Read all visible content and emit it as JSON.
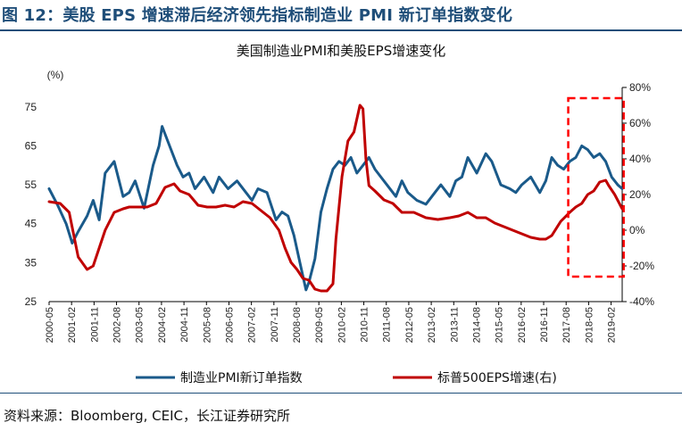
{
  "figure": {
    "title": "图 12：美股 EPS 增速滞后经济领先指标制造业 PMI 新订单指数变化",
    "source": "资料来源：Bloomberg, CEIC，长江证券研究所"
  },
  "chart_data": {
    "type": "line",
    "title": "美国制造业PMI和美股EPS增速变化",
    "y_unit_label": "(%)",
    "ylim_left": [
      25,
      80
    ],
    "yticks_left": [
      25,
      35,
      45,
      55,
      65,
      75
    ],
    "ylim_right": [
      -40,
      80
    ],
    "yticks_right": [
      "-40%",
      "-20%",
      "0%",
      "20%",
      "40%",
      "60%",
      "80%"
    ],
    "ytick_values_right": [
      -40,
      -20,
      0,
      20,
      40,
      60,
      80
    ],
    "xlim": [
      2000.33,
      2019.45
    ],
    "x_tick_labels": [
      "2000-05",
      "2001-02",
      "2001-11",
      "2002-08",
      "2003-05",
      "2004-02",
      "2004-11",
      "2005-08",
      "2006-05",
      "2007-02",
      "2007-11",
      "2008-08",
      "2009-05",
      "2010-02",
      "2010-11",
      "2011-08",
      "2012-05",
      "2013-02",
      "2013-11",
      "2014-08",
      "2015-05",
      "2016-02",
      "2016-11",
      "2017-08",
      "2018-05",
      "2019-02"
    ],
    "x_tick_positions": [
      2000.33,
      2001.08,
      2001.83,
      2002.58,
      2003.33,
      2004.08,
      2004.83,
      2005.58,
      2006.33,
      2007.08,
      2007.83,
      2008.58,
      2009.33,
      2010.08,
      2010.83,
      2011.58,
      2012.33,
      2013.08,
      2013.83,
      2014.58,
      2015.33,
      2016.08,
      2016.83,
      2017.58,
      2018.33,
      2019.08
    ],
    "grid": false,
    "legend_position": "bottom",
    "series": [
      {
        "name": "制造业PMI新订单指数",
        "axis": "left",
        "color": "#1a5a8a",
        "x": [
          2000.33,
          2000.6,
          2000.9,
          2001.1,
          2001.3,
          2001.6,
          2001.8,
          2002.0,
          2002.2,
          2002.5,
          2002.8,
          2003.0,
          2003.2,
          2003.5,
          2003.8,
          2004.0,
          2004.1,
          2004.3,
          2004.6,
          2004.8,
          2005.0,
          2005.2,
          2005.5,
          2005.8,
          2006.0,
          2006.3,
          2006.6,
          2006.9,
          2007.1,
          2007.3,
          2007.6,
          2007.9,
          2008.1,
          2008.3,
          2008.5,
          2008.7,
          2008.9,
          2009.0,
          2009.2,
          2009.4,
          2009.6,
          2009.8,
          2010.0,
          2010.2,
          2010.4,
          2010.6,
          2010.8,
          2011.0,
          2011.2,
          2011.4,
          2011.6,
          2011.9,
          2012.1,
          2012.3,
          2012.6,
          2012.9,
          2013.1,
          2013.4,
          2013.7,
          2013.9,
          2014.1,
          2014.3,
          2014.6,
          2014.9,
          2015.1,
          2015.4,
          2015.7,
          2015.9,
          2016.1,
          2016.4,
          2016.7,
          2016.9,
          2017.1,
          2017.3,
          2017.5,
          2017.7,
          2017.9,
          2018.1,
          2018.3,
          2018.5,
          2018.7,
          2018.9,
          2019.1,
          2019.3,
          2019.45
        ],
        "y": [
          54,
          50,
          45,
          40,
          43,
          47,
          51,
          46,
          58,
          61,
          52,
          53,
          56,
          49,
          60,
          65,
          70,
          66,
          60,
          57,
          58,
          54,
          57,
          53,
          57,
          54,
          56,
          53,
          51,
          54,
          53,
          46,
          48,
          47,
          42,
          35,
          28,
          30,
          36,
          48,
          54,
          59,
          61,
          60,
          62,
          58,
          60,
          62,
          59,
          57,
          55,
          52,
          56,
          53,
          51,
          50,
          52,
          55,
          52,
          56,
          57,
          62,
          58,
          63,
          61,
          55,
          54,
          53,
          55,
          57,
          53,
          56,
          62,
          60,
          59,
          61,
          62,
          65,
          64,
          62,
          63,
          61,
          57,
          55,
          54
        ],
        "line_width": 3
      },
      {
        "name": "标普500EPS增速(右)",
        "axis": "right",
        "color": "#c00000",
        "x": [
          2000.33,
          2000.7,
          2001.0,
          2001.3,
          2001.6,
          2001.8,
          2002.0,
          2002.2,
          2002.5,
          2002.8,
          2003.0,
          2003.3,
          2003.6,
          2003.9,
          2004.2,
          2004.5,
          2004.7,
          2005.0,
          2005.3,
          2005.6,
          2005.9,
          2006.2,
          2006.5,
          2006.8,
          2007.1,
          2007.4,
          2007.7,
          2008.0,
          2008.2,
          2008.4,
          2008.6,
          2008.8,
          2009.0,
          2009.2,
          2009.4,
          2009.6,
          2009.8,
          2009.9,
          2010.1,
          2010.3,
          2010.5,
          2010.7,
          2010.8,
          2010.9,
          2011.0,
          2011.2,
          2011.5,
          2011.8,
          2012.1,
          2012.5,
          2012.9,
          2013.3,
          2013.7,
          2014.0,
          2014.3,
          2014.6,
          2014.9,
          2015.2,
          2015.5,
          2015.8,
          2016.1,
          2016.4,
          2016.7,
          2016.9,
          2017.1,
          2017.4,
          2017.7,
          2017.9,
          2018.1,
          2018.3,
          2018.5,
          2018.7,
          2018.9,
          2019.0,
          2019.2,
          2019.45
        ],
        "y": [
          16,
          15,
          10,
          -15,
          -22,
          -20,
          -10,
          0,
          10,
          12,
          13,
          13,
          13,
          15,
          24,
          26,
          22,
          20,
          14,
          13,
          13,
          14,
          13,
          16,
          15,
          11,
          7,
          0,
          -10,
          -18,
          -22,
          -27,
          -28,
          -33,
          -34,
          -34,
          -30,
          -5,
          30,
          50,
          55,
          70,
          68,
          40,
          25,
          22,
          17,
          15,
          10,
          10,
          7,
          6,
          7,
          8,
          10,
          7,
          7,
          4,
          2,
          0,
          -2,
          -4,
          -5,
          -5,
          -3,
          5,
          10,
          13,
          15,
          20,
          22,
          27,
          28,
          25,
          20,
          12
        ]
      }
    ],
    "annotation": {
      "shape": "dashed-rectangle",
      "color": "#ff0000",
      "x_range": [
        2017.65,
        2019.5
      ],
      "y_range_right": [
        -26,
        74
      ]
    }
  }
}
